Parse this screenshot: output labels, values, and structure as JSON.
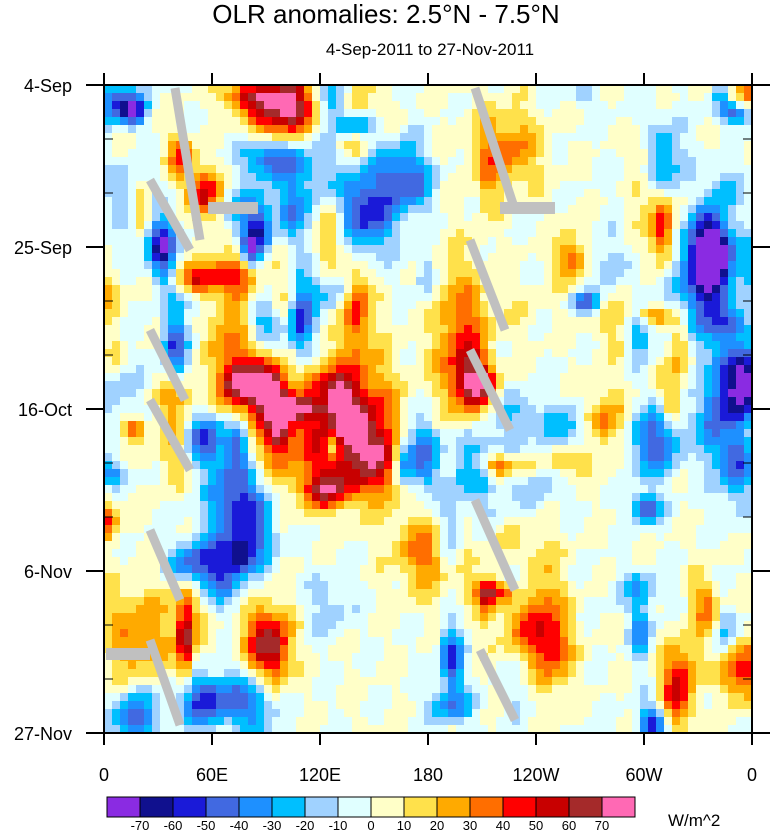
{
  "chart_data": {
    "type": "heatmap",
    "title": "OLR anomalies: 2.5°N - 7.5°N",
    "subtitle": "4-Sep-2011 to 27-Nov-2011",
    "x_ticks": [
      "0",
      "60E",
      "120E",
      "180",
      "120W",
      "60W",
      "0"
    ],
    "x_range_deg": [
      0,
      360
    ],
    "y_ticks": [
      "4-Sep",
      "25-Sep",
      "16-Oct",
      "6-Nov",
      "27-Nov"
    ],
    "y_range_days": [
      0,
      84
    ],
    "colorbar": {
      "units": "W/m^2",
      "labels": [
        "-70",
        "-60",
        "-50",
        "-40",
        "-30",
        "-20",
        "-10",
        "0",
        "10",
        "20",
        "30",
        "40",
        "50",
        "60",
        "70"
      ],
      "levels": [
        -70,
        -60,
        -50,
        -40,
        -30,
        -20,
        -10,
        0,
        10,
        20,
        30,
        40,
        50,
        60,
        70
      ],
      "colors": [
        "#8a2be2",
        "#10108e",
        "#1a1ad8",
        "#4169e1",
        "#1e90ff",
        "#00bfff",
        "#a0d2ff",
        "#e0ffff",
        "#ffffc8",
        "#ffe14b",
        "#ffaa00",
        "#ff6e00",
        "#ff0000",
        "#c80000",
        "#a52a2a",
        "#ff69b4"
      ]
    },
    "missing_color": "#c0c0c0"
  }
}
